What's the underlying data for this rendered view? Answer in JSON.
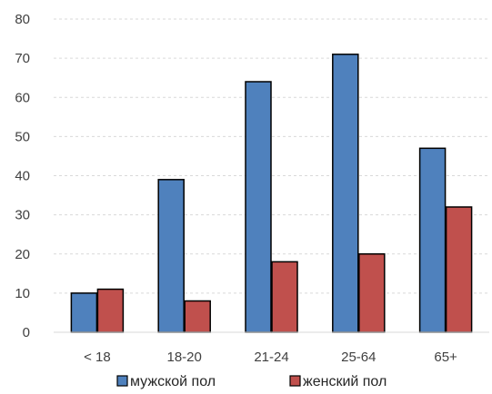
{
  "chart_data": {
    "type": "bar",
    "categories": [
      "< 18",
      "18-20",
      "21-24",
      "25-64",
      "65+"
    ],
    "series": [
      {
        "name": "мужской пол",
        "values": [
          10,
          39,
          64,
          71,
          47
        ],
        "color": "#4F81BD"
      },
      {
        "name": "женский пол",
        "values": [
          11,
          8,
          18,
          20,
          32
        ],
        "color": "#C0504D"
      }
    ],
    "ylim": [
      0,
      80
    ],
    "yticks": [
      0,
      10,
      20,
      30,
      40,
      50,
      60,
      70,
      80
    ],
    "grid": "horizontal-dashed",
    "legend": "bottom"
  }
}
